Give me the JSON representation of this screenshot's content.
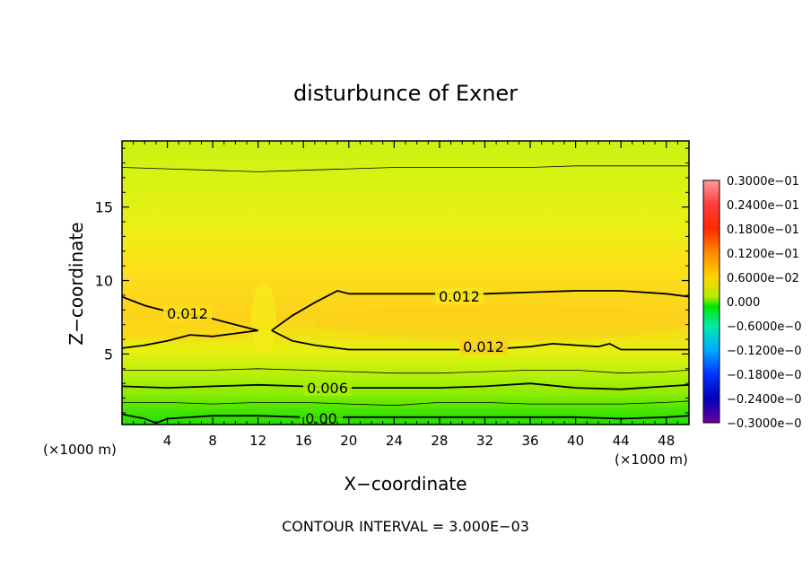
{
  "chart_data": {
    "type": "heatmap",
    "title": "disturbunce of Exner",
    "xlabel": "X−coordinate",
    "ylabel": "Z−coordinate",
    "x_unit": "(×1000 m)",
    "x_unit_right": "(×1000 m)",
    "xlim": [
      0,
      50
    ],
    "ylim": [
      0.2,
      19.5
    ],
    "x_ticks": [
      4,
      8,
      12,
      16,
      20,
      24,
      28,
      32,
      36,
      40,
      44,
      48
    ],
    "y_ticks": [
      5,
      10,
      15
    ],
    "grid": false,
    "footer": "CONTOUR INTERVAL = 3.000E−03",
    "contour_interval": 0.003,
    "contours": [
      {
        "level": 0.012,
        "label": "0.012",
        "segments": [
          {
            "x": [
              0,
              1,
              2,
              3,
              4,
              6,
              8,
              10,
              12
            ],
            "z": [
              8.9,
              8.6,
              8.3,
              8.1,
              7.9,
              7.7,
              7.4,
              7.0,
              6.6
            ]
          },
          {
            "x": [
              12,
              10,
              8,
              6,
              4,
              2,
              0
            ],
            "z": [
              6.6,
              6.4,
              6.2,
              6.3,
              5.9,
              5.6,
              5.4
            ]
          },
          {
            "x": [
              13.2,
              15,
              17,
              19,
              20,
              24,
              28,
              32,
              36,
              40,
              44,
              48,
              50
            ],
            "z": [
              6.6,
              7.6,
              8.5,
              9.3,
              9.1,
              9.1,
              9.1,
              9.1,
              9.2,
              9.3,
              9.3,
              9.1,
              8.9
            ]
          },
          {
            "x": [
              13.2,
              15,
              17,
              19,
              20,
              24,
              28,
              32,
              36,
              38,
              40,
              42,
              43,
              44,
              46,
              48,
              50
            ],
            "z": [
              6.6,
              5.9,
              5.6,
              5.4,
              5.3,
              5.3,
              5.3,
              5.3,
              5.5,
              5.7,
              5.6,
              5.5,
              5.7,
              5.3,
              5.3,
              5.3,
              5.3
            ]
          }
        ]
      },
      {
        "level": 0.009,
        "label": "",
        "segments": [
          {
            "x": [
              0,
              4,
              8,
              12,
              16,
              20,
              24,
              28,
              32,
              36,
              40,
              44,
              48,
              50
            ],
            "z": [
              3.9,
              3.9,
              3.9,
              4.0,
              3.9,
              3.8,
              3.7,
              3.7,
              3.8,
              3.9,
              3.9,
              3.7,
              3.8,
              3.9
            ]
          }
        ]
      },
      {
        "level": 0.006,
        "label": "0.006",
        "segments": [
          {
            "x": [
              0,
              4,
              8,
              12,
              16,
              20,
              24,
              28,
              32,
              36,
              40,
              44,
              48,
              50
            ],
            "z": [
              2.8,
              2.7,
              2.8,
              2.9,
              2.8,
              2.7,
              2.7,
              2.7,
              2.8,
              3.0,
              2.7,
              2.6,
              2.8,
              2.9
            ]
          }
        ]
      },
      {
        "level": 0.003,
        "label": "",
        "segments": [
          {
            "x": [
              0,
              4,
              8,
              12,
              16,
              20,
              24,
              28,
              32,
              36,
              40,
              44,
              48,
              50
            ],
            "z": [
              1.7,
              1.7,
              1.6,
              1.7,
              1.7,
              1.6,
              1.5,
              1.7,
              1.7,
              1.6,
              1.6,
              1.6,
              1.7,
              1.8
            ]
          }
        ]
      },
      {
        "level": 0.0,
        "label": "0.00",
        "segments": [
          {
            "x": [
              0,
              2,
              3,
              4,
              8,
              12,
              16,
              20,
              24,
              28,
              32,
              36,
              40,
              44,
              48,
              50
            ],
            "z": [
              0.9,
              0.6,
              0.3,
              0.6,
              0.8,
              0.8,
              0.7,
              0.7,
              0.7,
              0.7,
              0.7,
              0.7,
              0.7,
              0.6,
              0.7,
              0.8
            ]
          }
        ]
      },
      {
        "level": 0.009,
        "label": "",
        "segments": [
          {
            "x": [
              0,
              4,
              8,
              12,
              16,
              20,
              24,
              28,
              32,
              36,
              40,
              44,
              48,
              50
            ],
            "z": [
              17.7,
              17.6,
              17.5,
              17.4,
              17.5,
              17.6,
              17.7,
              17.7,
              17.7,
              17.7,
              17.8,
              17.8,
              17.8,
              17.8
            ]
          }
        ]
      }
    ],
    "colorbar": {
      "labels": [
        "0.3000e−01",
        "0.2400e−01",
        "0.1800e−01",
        "0.1200e−01",
        "0.6000e−02",
        "0.000",
        "−0.6000e−0",
        "−0.1200e−0",
        "−0.1800e−0",
        "−0.2400e−0",
        "−0.3000e−0"
      ],
      "values": [
        0.03,
        0.024,
        0.018,
        0.012,
        0.006,
        0.0,
        -0.006,
        -0.012,
        -0.018,
        -0.024,
        -0.03
      ],
      "colors_top_to_bottom": [
        "#ff9999",
        "#ff2222",
        "#ff8800",
        "#ffcc00",
        "#88ee00",
        "#00ee00",
        "#00eeaa",
        "#0099ff",
        "#0022ff",
        "#0000aa",
        "#660099"
      ]
    },
    "field_colors": {
      "peak": "#ffd21e",
      "mid": "#d8f510",
      "low": "#9ef000",
      "ground": "#1ee000"
    }
  }
}
